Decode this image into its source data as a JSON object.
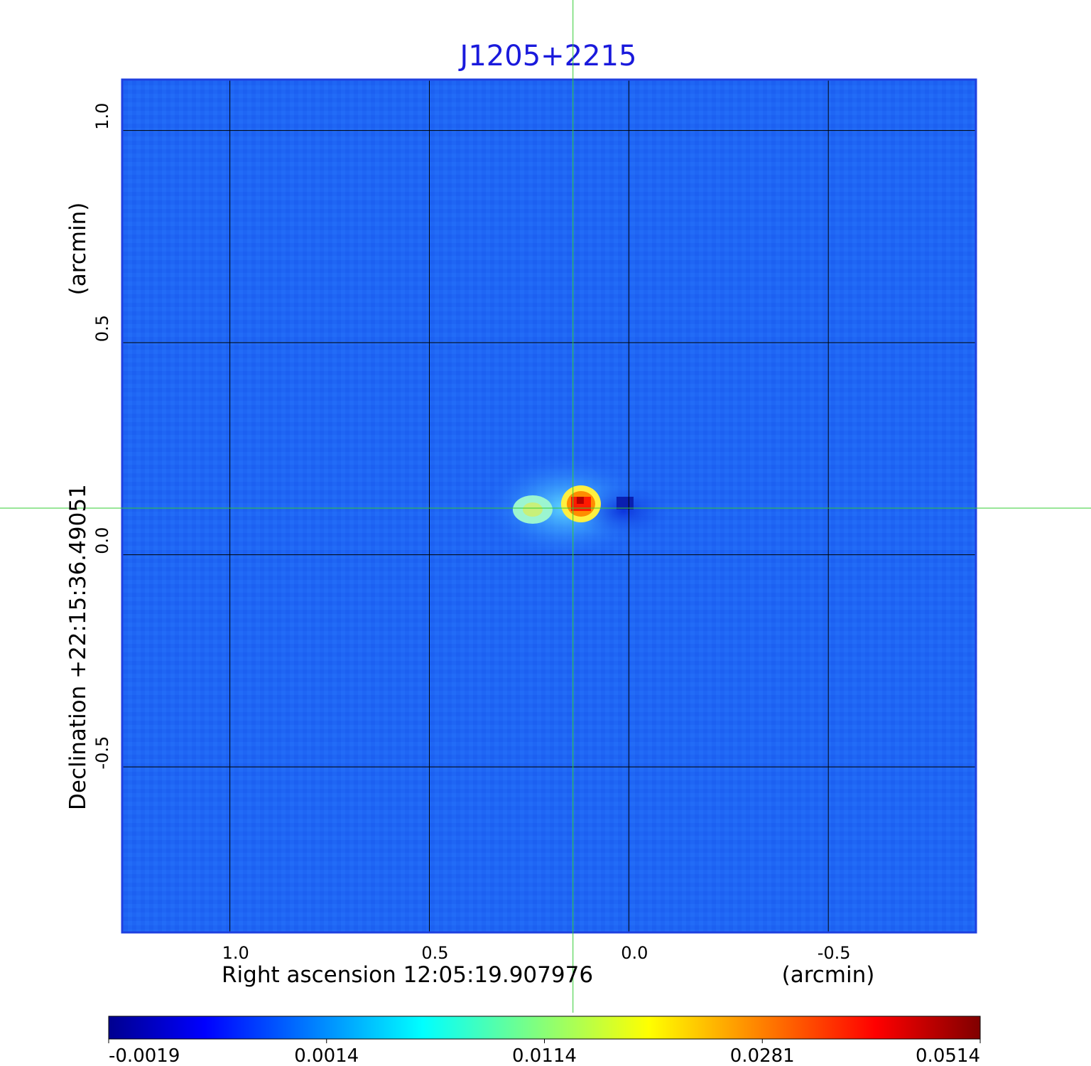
{
  "chart_data": {
    "type": "heatmap",
    "title": "J1205+2215",
    "xlabel": "Right ascension  12:05:19.907976",
    "xunit": "(arcmin)",
    "ylabel": "Declination  +22:15:36.49051",
    "yunit": "(arcmin)",
    "xlim": [
      1.27,
      -0.87
    ],
    "ylim": [
      -0.89,
      1.12
    ],
    "x_ticks": [
      {
        "value": 1.0,
        "label": "1.0"
      },
      {
        "value": 0.5,
        "label": "0.5"
      },
      {
        "value": 0.0,
        "label": "0.0"
      },
      {
        "value": -0.5,
        "label": "-0.5"
      }
    ],
    "y_ticks": [
      {
        "value": 1.0,
        "label": "1.0"
      },
      {
        "value": 0.5,
        "label": "0.5"
      },
      {
        "value": 0.0,
        "label": "0.0"
      },
      {
        "value": -0.5,
        "label": "-0.5"
      }
    ],
    "grid": true,
    "crosshair": {
      "x": 0.14,
      "y": 0.11,
      "color": "#33cc33"
    },
    "source": {
      "peak_x": 0.12,
      "peak_y": 0.12,
      "peak_value": 0.0514
    },
    "colorbar": {
      "colormap": "jet",
      "ticks": [
        {
          "value": -0.0019,
          "label": "-0.0019"
        },
        {
          "value": 0.0014,
          "label": "0.0014"
        },
        {
          "value": 0.0114,
          "label": "0.0114"
        },
        {
          "value": 0.0281,
          "label": "0.0281"
        },
        {
          "value": 0.0514,
          "label": "0.0514"
        }
      ]
    },
    "colors": {
      "background": "#1e64f5",
      "frame": "#1e40e0",
      "title": "#1a1adc",
      "grid": "#000000"
    }
  }
}
